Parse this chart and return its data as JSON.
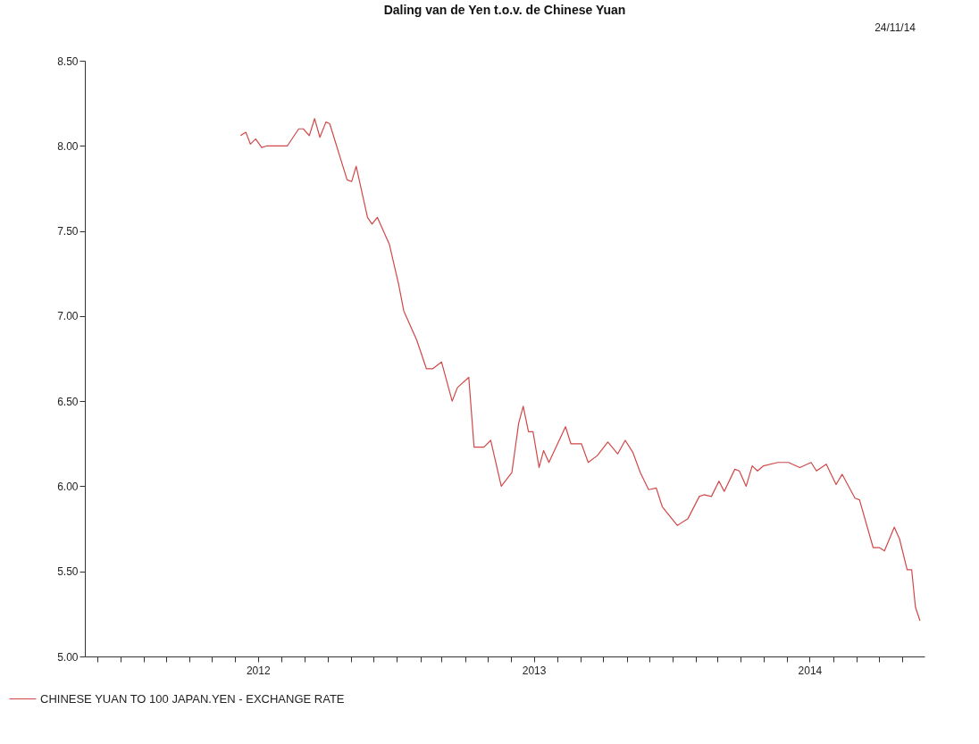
{
  "chart_data": {
    "type": "line",
    "title": "Daling van de Yen t.o.v. de Chinese Yuan",
    "annotations": [
      "24/11/14"
    ],
    "xlim": [
      "2011-11-15",
      "2014-11-30"
    ],
    "xticks": [
      {
        "value": "2011-12-01",
        "label": null
      },
      {
        "value": "2012-01-01",
        "label": null
      },
      {
        "value": "2012-02-01",
        "label": null
      },
      {
        "value": "2012-03-01",
        "label": null
      },
      {
        "value": "2012-04-01",
        "label": null
      },
      {
        "value": "2012-05-01",
        "label": null
      },
      {
        "value": "2012-06-01",
        "label": null
      },
      {
        "value": "2012-07-01",
        "label": "2012"
      },
      {
        "value": "2012-08-01",
        "label": null
      },
      {
        "value": "2012-09-01",
        "label": null
      },
      {
        "value": "2012-10-01",
        "label": null
      },
      {
        "value": "2012-11-01",
        "label": null
      },
      {
        "value": "2012-12-01",
        "label": null
      },
      {
        "value": "2013-01-01",
        "label": null
      },
      {
        "value": "2013-02-01",
        "label": null
      },
      {
        "value": "2013-03-01",
        "label": null
      },
      {
        "value": "2013-04-01",
        "label": null
      },
      {
        "value": "2013-05-01",
        "label": null
      },
      {
        "value": "2013-06-01",
        "label": null
      },
      {
        "value": "2013-07-01",
        "label": "2013"
      },
      {
        "value": "2013-08-01",
        "label": null
      },
      {
        "value": "2013-09-01",
        "label": null
      },
      {
        "value": "2013-10-01",
        "label": null
      },
      {
        "value": "2013-11-01",
        "label": null
      },
      {
        "value": "2013-12-01",
        "label": null
      },
      {
        "value": "2014-01-01",
        "label": null
      },
      {
        "value": "2014-02-01",
        "label": null
      },
      {
        "value": "2014-03-01",
        "label": null
      },
      {
        "value": "2014-04-01",
        "label": null
      },
      {
        "value": "2014-05-01",
        "label": null
      },
      {
        "value": "2014-06-01",
        "label": null
      },
      {
        "value": "2014-07-01",
        "label": "2014"
      },
      {
        "value": "2014-08-01",
        "label": null
      },
      {
        "value": "2014-09-01",
        "label": null
      },
      {
        "value": "2014-10-01",
        "label": null
      },
      {
        "value": "2014-11-01",
        "label": null
      }
    ],
    "ylim": [
      5,
      8.5
    ],
    "yticks": [
      {
        "value": 5,
        "label": "5.00"
      },
      {
        "value": 5.5,
        "label": "5.50"
      },
      {
        "value": 6,
        "label": "6.00"
      },
      {
        "value": 6.5,
        "label": "6.50"
      },
      {
        "value": 7,
        "label": "7.00"
      },
      {
        "value": 7.5,
        "label": "7.50"
      },
      {
        "value": 8,
        "label": "8.00"
      },
      {
        "value": 8.5,
        "label": "8.50"
      }
    ],
    "legend": "bottom",
    "x": [
      "2012-06-08",
      "2012-06-15",
      "2012-06-21",
      "2012-06-28",
      "2012-07-06",
      "2012-07-13",
      "2012-08-09",
      "2012-08-24",
      "2012-08-30",
      "2012-09-07",
      "2012-09-14",
      "2012-09-21",
      "2012-09-29",
      "2012-10-04",
      "2012-10-27",
      "2012-11-02",
      "2012-11-08",
      "2012-11-23",
      "2012-11-29",
      "2012-12-06",
      "2012-12-22",
      "2013-01-03",
      "2013-01-10",
      "2013-01-27",
      "2013-02-09",
      "2013-02-17",
      "2013-03-01",
      "2013-03-15",
      "2013-03-22",
      "2013-04-06",
      "2013-04-13",
      "2013-04-26",
      "2013-05-05",
      "2013-05-19",
      "2013-06-02",
      "2013-06-11",
      "2013-06-17",
      "2013-06-24",
      "2013-06-30",
      "2013-07-08",
      "2013-07-14",
      "2013-07-21",
      "2013-08-12",
      "2013-08-19",
      "2013-09-02",
      "2013-09-11",
      "2013-09-23",
      "2013-10-07",
      "2013-10-20",
      "2013-10-30",
      "2013-11-09",
      "2013-11-19",
      "2013-11-30",
      "2013-12-10",
      "2013-12-18",
      "2014-01-07",
      "2014-01-21",
      "2014-02-05",
      "2014-02-11",
      "2014-02-21",
      "2014-03-03",
      "2014-03-10",
      "2014-03-24",
      "2014-03-30",
      "2014-04-08",
      "2014-04-16",
      "2014-04-23",
      "2014-05-01",
      "2014-05-20",
      "2014-06-03",
      "2014-06-18",
      "2014-07-03",
      "2014-07-10",
      "2014-07-23",
      "2014-08-05",
      "2014-08-13",
      "2014-08-30",
      "2014-09-05",
      "2014-09-23",
      "2014-10-01",
      "2014-10-08",
      "2014-10-21",
      "2014-10-28",
      "2014-11-07",
      "2014-11-13",
      "2014-11-18",
      "2014-11-24"
    ],
    "series": [
      {
        "name": "CHINESE YUAN TO 100 JAPAN.YEN - EXCHANGE RATE",
        "color": "#d04848",
        "values": [
          8.06,
          8.08,
          8.01,
          8.04,
          7.99,
          8.0,
          8.0,
          8.1,
          8.1,
          8.06,
          8.16,
          8.05,
          8.14,
          8.13,
          7.8,
          7.79,
          7.88,
          7.58,
          7.54,
          7.58,
          7.42,
          7.19,
          7.03,
          6.86,
          6.69,
          6.69,
          6.73,
          6.5,
          6.58,
          6.64,
          6.23,
          6.23,
          6.27,
          6.0,
          6.08,
          6.37,
          6.47,
          6.32,
          6.32,
          6.11,
          6.21,
          6.14,
          6.35,
          6.25,
          6.25,
          6.14,
          6.18,
          6.26,
          6.19,
          6.27,
          6.2,
          6.08,
          5.98,
          5.99,
          5.88,
          5.77,
          5.81,
          5.94,
          5.95,
          5.94,
          6.03,
          5.97,
          6.1,
          6.09,
          6.0,
          6.12,
          6.09,
          6.12,
          6.14,
          6.14,
          6.11,
          6.14,
          6.09,
          6.13,
          6.01,
          6.07,
          5.93,
          5.92,
          5.64,
          5.64,
          5.62,
          5.76,
          5.69,
          5.51,
          5.51,
          5.29,
          5.21
        ]
      }
    ]
  }
}
